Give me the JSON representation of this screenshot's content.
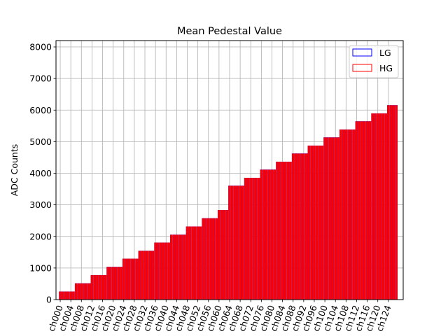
{
  "chart_data": {
    "type": "bar",
    "title": "Mean Pedestal Value",
    "xlabel": "",
    "ylabel": "ADC Counts",
    "ylim": [
      0,
      8200
    ],
    "yticks": [
      0,
      1000,
      2000,
      3000,
      4000,
      5000,
      6000,
      7000,
      8000
    ],
    "grid": true,
    "legend_placement": "top-right",
    "x_tick_labels": [
      "ch000",
      "ch004",
      "ch008",
      "ch012",
      "ch016",
      "ch020",
      "ch024",
      "ch028",
      "ch032",
      "ch036",
      "ch040",
      "ch044",
      "ch048",
      "ch052",
      "ch056",
      "ch060",
      "ch064",
      "ch068",
      "ch072",
      "ch076",
      "ch080",
      "ch084",
      "ch088",
      "ch092",
      "ch096",
      "ch100",
      "ch104",
      "ch108",
      "ch112",
      "ch116",
      "ch120",
      "ch124"
    ],
    "num_channels": 128,
    "x_range": [
      -1.6,
      129.6
    ],
    "step_values": [
      250,
      510,
      770,
      1030,
      1290,
      1540,
      1800,
      2050,
      2310,
      2570,
      2830,
      3600,
      3850,
      4110,
      4360,
      4620,
      4870,
      5130,
      5380,
      5640,
      5890,
      6150
    ],
    "step_boundaries": [
      0,
      6,
      12,
      18,
      24,
      30,
      36,
      42,
      48,
      54,
      60,
      64,
      70,
      76,
      82,
      88,
      94,
      100,
      106,
      112,
      118,
      124,
      128
    ],
    "series": [
      {
        "name": "LG",
        "color": "#0000ff",
        "fill": "#ff0000"
      },
      {
        "name": "HG",
        "color": "#ff0000",
        "fill": "#ff0000"
      }
    ]
  }
}
